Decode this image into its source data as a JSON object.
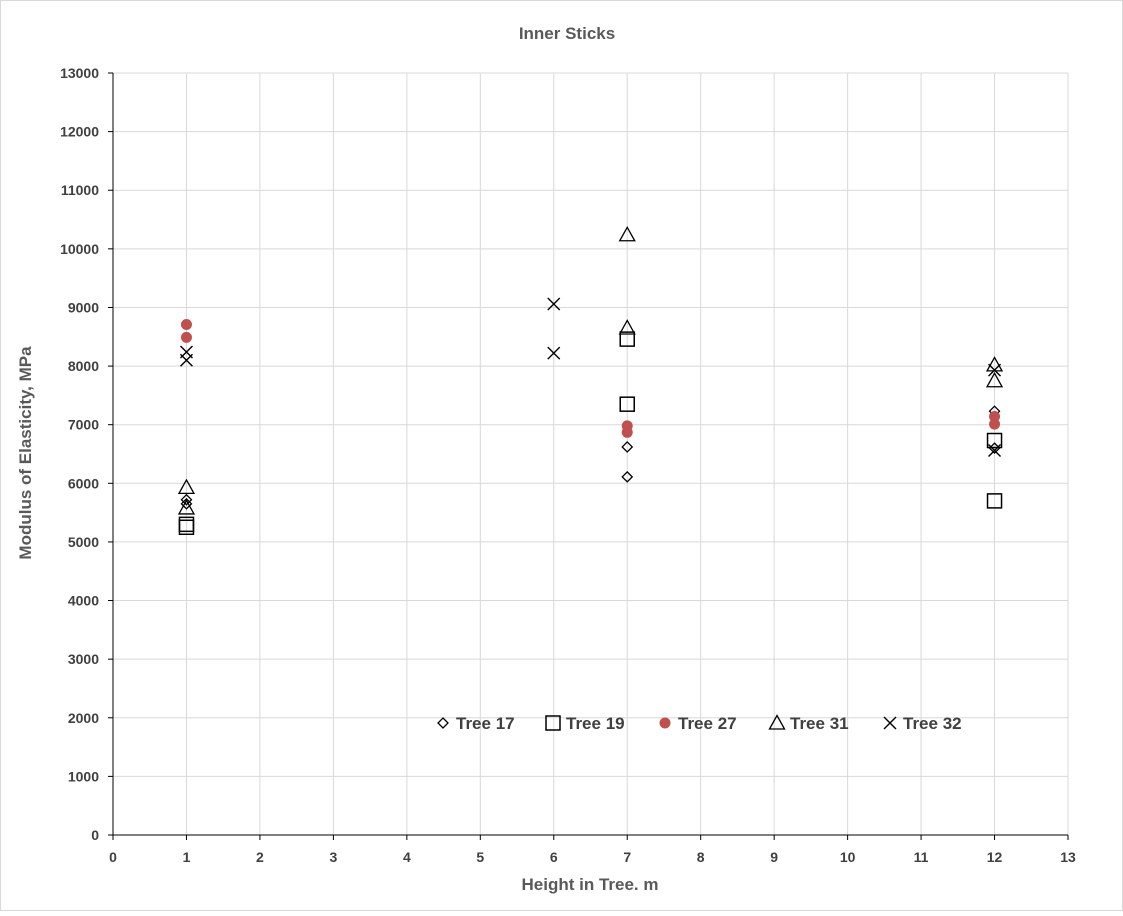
{
  "chart_data": {
    "type": "scatter",
    "title": "Inner Sticks",
    "xlabel": "Height in Tree. m",
    "ylabel": "Modulus of Elasticity, MPa",
    "xlim": [
      0,
      13
    ],
    "ylim": [
      0,
      13000
    ],
    "x_ticks": [
      "0",
      "1",
      "2",
      "3",
      "4",
      "5",
      "6",
      "7",
      "8",
      "9",
      "10",
      "11",
      "12",
      "13"
    ],
    "y_ticks": [
      "0",
      "1000",
      "2000",
      "3000",
      "4000",
      "5000",
      "6000",
      "7000",
      "8000",
      "9000",
      "10000",
      "11000",
      "12000",
      "13000"
    ],
    "grid": true,
    "legend_position": "inside-bottom-center",
    "series": [
      {
        "name": "Tree 17",
        "marker": "diamond",
        "color": "#000000",
        "points": [
          [
            1,
            5720
          ],
          [
            1,
            5650
          ],
          [
            7,
            6620
          ],
          [
            7,
            6110
          ],
          [
            12,
            7230
          ],
          [
            12,
            6600
          ]
        ]
      },
      {
        "name": "Tree 19",
        "marker": "square",
        "color": "#000000",
        "points": [
          [
            1,
            5300
          ],
          [
            1,
            5250
          ],
          [
            7,
            8460
          ],
          [
            7,
            7350
          ],
          [
            12,
            6730
          ],
          [
            12,
            5700
          ]
        ]
      },
      {
        "name": "Tree 27",
        "marker": "circle",
        "color": "#c0504d",
        "points": [
          [
            1,
            8710
          ],
          [
            1,
            8490
          ],
          [
            7,
            6980
          ],
          [
            7,
            6870
          ],
          [
            12,
            7140
          ],
          [
            12,
            7010
          ]
        ]
      },
      {
        "name": "Tree 31",
        "marker": "triangle",
        "color": "#000000",
        "points": [
          [
            1,
            5930
          ],
          [
            1,
            5580
          ],
          [
            7,
            10240
          ],
          [
            7,
            8650
          ],
          [
            12,
            8020
          ],
          [
            12,
            7750
          ]
        ]
      },
      {
        "name": "Tree 32",
        "marker": "x",
        "color": "#000000",
        "points": [
          [
            1,
            8240
          ],
          [
            1,
            8100
          ],
          [
            6,
            9060
          ],
          [
            6,
            8220
          ],
          [
            12,
            7930
          ],
          [
            12,
            6560
          ]
        ]
      }
    ]
  }
}
